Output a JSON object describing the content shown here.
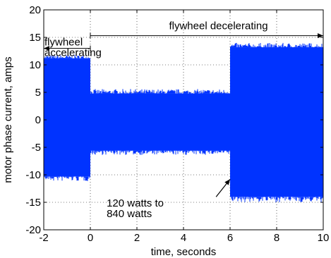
{
  "chart_data": {
    "type": "area",
    "xlabel": "time, seconds",
    "ylabel": "motor phase current, amps",
    "xlim": [
      -2,
      10
    ],
    "ylim": [
      -20,
      20
    ],
    "x_ticks": [
      -2,
      0,
      2,
      4,
      6,
      8,
      10
    ],
    "y_ticks": [
      -20,
      -15,
      -10,
      -5,
      0,
      5,
      10,
      15,
      20
    ],
    "grid": true,
    "series_color": "#0033ff",
    "series": [
      {
        "segments": [
          {
            "x_start": -2,
            "x_end": 0,
            "upper": 11.2,
            "lower": -10.3,
            "upper_peak": 11.8,
            "lower_peak": -11.2
          },
          {
            "x_start": 0,
            "x_end": 6,
            "upper": 4.8,
            "lower": -5.6,
            "upper_peak": 5.6,
            "lower_peak": -6.4
          },
          {
            "x_start": 6,
            "x_end": 10,
            "upper": 13.2,
            "lower": -14.0,
            "upper_peak": 14.0,
            "lower_peak": -15.0
          }
        ]
      }
    ],
    "annotations": [
      {
        "id": "decel",
        "lines": [
          "flywheel decelerating"
        ],
        "x": 5.5,
        "y": 16.5,
        "arrow": {
          "from_x": 0,
          "to_x": 10,
          "y": 15.3
        }
      },
      {
        "id": "accel",
        "lines": [
          "flywheel",
          "accelerating"
        ],
        "x": -2,
        "y": 13.5,
        "arrow": {
          "from_x": 0,
          "to_x": -2,
          "y": 13.0
        }
      },
      {
        "id": "power",
        "lines": [
          "120 watts to",
          "840 watts"
        ],
        "x": 0.7,
        "y": -15.8,
        "arrow": {
          "from_x": 5.4,
          "from_y": -14.0,
          "to_x": 6,
          "to_y": -10.8
        }
      }
    ]
  }
}
